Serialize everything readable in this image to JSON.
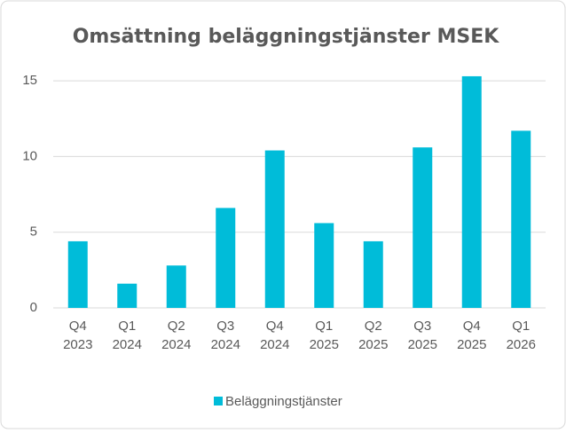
{
  "chart_data": {
    "type": "bar",
    "title": "Omsättning beläggningstjänster MSEK",
    "categories": [
      [
        "Q4",
        "2023"
      ],
      [
        "Q1",
        "2024"
      ],
      [
        "Q2",
        "2024"
      ],
      [
        "Q3",
        "2024"
      ],
      [
        "Q4",
        "2024"
      ],
      [
        "Q1",
        "2025"
      ],
      [
        "Q2",
        "2025"
      ],
      [
        "Q3",
        "2025"
      ],
      [
        "Q4",
        "2025"
      ],
      [
        "Q1",
        "2026"
      ]
    ],
    "series": [
      {
        "name": "Beläggningstjänster",
        "color": "#00bcd9",
        "values": [
          4.4,
          1.6,
          2.8,
          6.6,
          10.4,
          5.6,
          4.4,
          10.6,
          15.3,
          11.7
        ]
      }
    ],
    "ylim": [
      0,
      16
    ],
    "yticks": [
      0,
      5,
      10,
      15
    ],
    "grid": true,
    "legend": "bottom"
  }
}
